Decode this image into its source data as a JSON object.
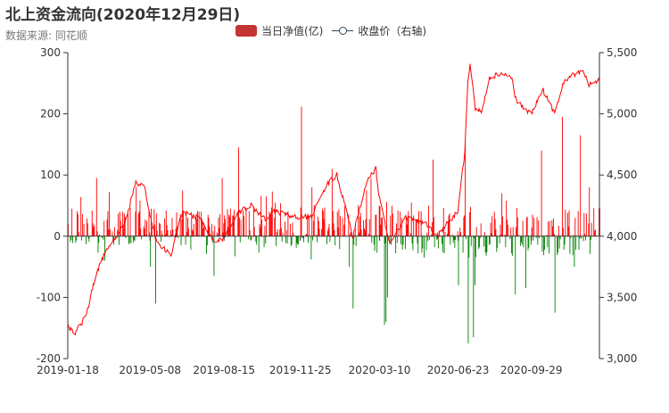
{
  "title": "北上资金流向(2020年12月29日)",
  "subtitle": "数据来源: 同花顺",
  "legend": {
    "net_label": "当日净值(亿)",
    "close_label": "收盘价（右轴)"
  },
  "colors": {
    "positive": "#ff0000",
    "negative": "#008000",
    "price_line": "#ff0000",
    "axis": "#333333"
  },
  "chart_data": {
    "type": "bar",
    "title": "北上资金流向(2020年12月29日)",
    "x_tick_labels": [
      "2019-01-18",
      "2019-05-08",
      "2019-08-15",
      "2019-11-25",
      "2020-03-10",
      "2020-06-23",
      "2020-09-29"
    ],
    "x_range": [
      "2019-01-18",
      "2020-12-29"
    ],
    "y_left": {
      "label": "当日净值(亿)",
      "ylim": [
        -200,
        300
      ],
      "ticks": [
        -200,
        -100,
        0,
        100,
        200,
        300
      ]
    },
    "y_right": {
      "label": "收盘价（右轴)",
      "ylim": [
        3000,
        5500
      ],
      "ticks": [
        3000,
        3500,
        4000,
        4500,
        5000,
        5500
      ]
    },
    "net_inflow_anchors": [
      [
        "2019-01-18",
        20
      ],
      [
        "2019-02-25",
        95
      ],
      [
        "2019-03-08",
        -40
      ],
      [
        "2019-04-19",
        80
      ],
      [
        "2019-05-08",
        -50
      ],
      [
        "2019-05-15",
        -110
      ],
      [
        "2019-06-20",
        75
      ],
      [
        "2019-08-01",
        -65
      ],
      [
        "2019-08-12",
        95
      ],
      [
        "2019-09-03",
        145
      ],
      [
        "2019-10-10",
        65
      ],
      [
        "2019-10-21",
        30
      ],
      [
        "2019-11-06",
        10
      ],
      [
        "2019-11-26",
        212
      ],
      [
        "2019-12-10",
        80
      ],
      [
        "2020-01-06",
        110
      ],
      [
        "2020-02-03",
        -118
      ],
      [
        "2020-02-21",
        75
      ],
      [
        "2020-03-16",
        -145
      ],
      [
        "2020-03-18",
        -140
      ],
      [
        "2020-03-20",
        -100
      ],
      [
        "2020-04-21",
        55
      ],
      [
        "2020-05-20",
        125
      ],
      [
        "2020-06-23",
        -80
      ],
      [
        "2020-07-02",
        150
      ],
      [
        "2020-07-06",
        -175
      ],
      [
        "2020-07-13",
        -165
      ],
      [
        "2020-07-15",
        -80
      ],
      [
        "2020-08-20",
        70
      ],
      [
        "2020-09-07",
        -95
      ],
      [
        "2020-09-21",
        -85
      ],
      [
        "2020-10-12",
        140
      ],
      [
        "2020-10-30",
        -125
      ],
      [
        "2020-11-09",
        195
      ],
      [
        "2020-11-25",
        -50
      ],
      [
        "2020-12-03",
        165
      ],
      [
        "2020-12-15",
        80
      ],
      [
        "2020-12-29",
        45
      ]
    ],
    "close_price_anchors": [
      [
        "2019-01-18",
        3270
      ],
      [
        "2019-01-28",
        3210
      ],
      [
        "2019-02-12",
        3350
      ],
      [
        "2019-02-25",
        3700
      ],
      [
        "2019-03-08",
        3850
      ],
      [
        "2019-04-04",
        4100
      ],
      [
        "2019-04-19",
        4440
      ],
      [
        "2019-04-30",
        4410
      ],
      [
        "2019-05-08",
        4180
      ],
      [
        "2019-05-17",
        3950
      ],
      [
        "2019-06-05",
        3850
      ],
      [
        "2019-06-20",
        4200
      ],
      [
        "2019-07-12",
        4150
      ],
      [
        "2019-08-01",
        3960
      ],
      [
        "2019-08-15",
        3980
      ],
      [
        "2019-09-03",
        4200
      ],
      [
        "2019-09-20",
        4250
      ],
      [
        "2019-10-10",
        4130
      ],
      [
        "2019-10-21",
        4200
      ],
      [
        "2019-11-06",
        4180
      ],
      [
        "2019-11-25",
        4150
      ],
      [
        "2019-12-10",
        4170
      ],
      [
        "2019-12-30",
        4420
      ],
      [
        "2020-01-13",
        4500
      ],
      [
        "2020-01-23",
        4270
      ],
      [
        "2020-02-03",
        4000
      ],
      [
        "2020-02-21",
        4440
      ],
      [
        "2020-03-05",
        4550
      ],
      [
        "2020-03-10",
        4300
      ],
      [
        "2020-03-23",
        3950
      ],
      [
        "2020-04-14",
        4150
      ],
      [
        "2020-05-11",
        4100
      ],
      [
        "2020-05-27",
        4000
      ],
      [
        "2020-06-12",
        4130
      ],
      [
        "2020-06-23",
        4200
      ],
      [
        "2020-07-02",
        4700
      ],
      [
        "2020-07-06",
        5250
      ],
      [
        "2020-07-09",
        5420
      ],
      [
        "2020-07-16",
        5050
      ],
      [
        "2020-07-24",
        5000
      ],
      [
        "2020-08-04",
        5300
      ],
      [
        "2020-08-18",
        5320
      ],
      [
        "2020-09-02",
        5300
      ],
      [
        "2020-09-09",
        5100
      ],
      [
        "2020-09-29",
        5000
      ],
      [
        "2020-10-14",
        5200
      ],
      [
        "2020-10-30",
        5000
      ],
      [
        "2020-11-10",
        5250
      ],
      [
        "2020-11-24",
        5320
      ],
      [
        "2020-12-07",
        5360
      ],
      [
        "2020-12-15",
        5240
      ],
      [
        "2020-12-29",
        5270
      ]
    ]
  }
}
